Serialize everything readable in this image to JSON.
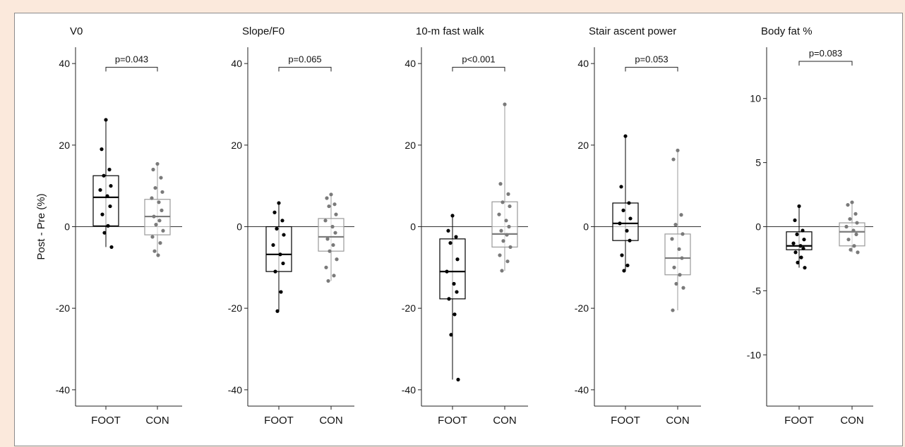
{
  "chart_data": [
    {
      "type": "box",
      "title": "V0",
      "ylabel": "Post - Pre (%)",
      "ylim": [
        -44,
        44
      ],
      "yticks": [
        40,
        20,
        0,
        -20,
        -40
      ],
      "categories": [
        "FOOT",
        "CON"
      ],
      "pvalue": "p=0.043",
      "boxes": [
        {
          "category": "FOOT",
          "q1": 0.2,
          "median": 7.2,
          "q3": 12.5,
          "whisker_low": -5.0,
          "whisker_high": 26.2,
          "points": [
            26.2,
            19.0,
            14.0,
            12.5,
            10.0,
            9.0,
            7.5,
            5.0,
            3.0,
            0.2,
            -1.5,
            -5.0
          ]
        },
        {
          "category": "CON",
          "q1": -2.0,
          "median": 2.5,
          "q3": 6.7,
          "whisker_low": -7.0,
          "whisker_high": 15.4,
          "points": [
            15.4,
            14.0,
            12.0,
            9.5,
            8.5,
            7.0,
            6.0,
            4.0,
            2.5,
            1.5,
            0.5,
            -1.0,
            -2.5,
            -4.0,
            -6.0,
            -7.0
          ]
        }
      ]
    },
    {
      "type": "box",
      "title": "Slope/F0",
      "ylabel": "",
      "ylim": [
        -44,
        44
      ],
      "yticks": [
        40,
        20,
        0,
        -20,
        -40
      ],
      "categories": [
        "FOOT",
        "CON"
      ],
      "pvalue": "p=0.065",
      "boxes": [
        {
          "category": "FOOT",
          "q1": -11.0,
          "median": -6.8,
          "q3": 0.0,
          "whisker_low": -20.7,
          "whisker_high": 5.8,
          "points": [
            5.8,
            3.5,
            1.5,
            -0.5,
            -2.0,
            -4.5,
            -6.8,
            -9.0,
            -11.0,
            -16.0,
            -20.7
          ]
        },
        {
          "category": "CON",
          "q1": -6.0,
          "median": -2.5,
          "q3": 2.0,
          "whisker_low": -13.3,
          "whisker_high": 7.9,
          "points": [
            7.9,
            7.0,
            5.5,
            5.0,
            3.0,
            1.5,
            0.0,
            -1.5,
            -3.0,
            -4.5,
            -6.0,
            -8.0,
            -10.0,
            -12.0,
            -13.3
          ]
        }
      ]
    },
    {
      "type": "box",
      "title": "10-m fast walk",
      "ylabel": "",
      "ylim": [
        -44,
        44
      ],
      "yticks": [
        40,
        20,
        0,
        -20,
        -40
      ],
      "categories": [
        "FOOT",
        "CON"
      ],
      "pvalue": "p<0.001",
      "boxes": [
        {
          "category": "FOOT",
          "q1": -17.7,
          "median": -11.0,
          "q3": -3.0,
          "whisker_low": -37.5,
          "whisker_high": 2.7,
          "points": [
            2.7,
            -1.0,
            -2.5,
            -4.0,
            -8.0,
            -11.0,
            -14.0,
            -16.0,
            -17.7,
            -21.5,
            -26.5,
            -37.5
          ]
        },
        {
          "category": "CON",
          "q1": -5.0,
          "median": -1.8,
          "q3": 6.1,
          "whisker_low": -10.8,
          "whisker_high": 30.0,
          "points": [
            30.0,
            10.5,
            8.0,
            6.0,
            5.0,
            3.0,
            1.5,
            0.0,
            -1.0,
            -2.0,
            -3.5,
            -5.0,
            -7.0,
            -8.5,
            -10.8
          ]
        }
      ]
    },
    {
      "type": "box",
      "title": "Stair ascent power",
      "ylabel": "",
      "ylim": [
        -44,
        44
      ],
      "yticks": [
        40,
        20,
        0,
        -20,
        -40
      ],
      "categories": [
        "FOOT",
        "CON"
      ],
      "pvalue": "p=0.053",
      "boxes": [
        {
          "category": "FOOT",
          "q1": -3.4,
          "median": 0.8,
          "q3": 5.8,
          "whisker_low": -10.8,
          "whisker_high": 22.2,
          "points": [
            22.2,
            9.8,
            5.8,
            4.0,
            2.0,
            0.8,
            -1.0,
            -3.4,
            -7.0,
            -9.5,
            -10.8
          ]
        },
        {
          "category": "CON",
          "q1": -11.8,
          "median": -7.7,
          "q3": -1.8,
          "whisker_low": -20.5,
          "whisker_high": 18.7,
          "points": [
            18.7,
            16.5,
            2.9,
            0.5,
            -1.8,
            -3.0,
            -5.5,
            -7.7,
            -10.0,
            -11.8,
            -14.0,
            -15.0,
            -20.5
          ]
        }
      ]
    },
    {
      "type": "box",
      "title": "Body fat %",
      "ylabel": "",
      "ylim": [
        -14,
        14
      ],
      "yticks": [
        10,
        5,
        0,
        -5,
        -10
      ],
      "categories": [
        "FOOT",
        "CON"
      ],
      "pvalue": "p=0.083",
      "boxes": [
        {
          "category": "FOOT",
          "q1": -1.8,
          "median": -1.5,
          "q3": -0.4,
          "whisker_low": -3.2,
          "whisker_high": 1.6,
          "points": [
            1.6,
            0.5,
            -0.3,
            -0.6,
            -1.0,
            -1.3,
            -1.5,
            -1.7,
            -2.0,
            -2.4,
            -2.8,
            -3.2
          ]
        },
        {
          "category": "CON",
          "q1": -1.5,
          "median": -0.4,
          "q3": 0.3,
          "whisker_low": -2.0,
          "whisker_high": 1.9,
          "points": [
            1.9,
            1.7,
            1.0,
            0.6,
            0.3,
            0.0,
            -0.3,
            -0.6,
            -1.0,
            -1.5,
            -1.8,
            -2.0
          ]
        }
      ]
    }
  ]
}
